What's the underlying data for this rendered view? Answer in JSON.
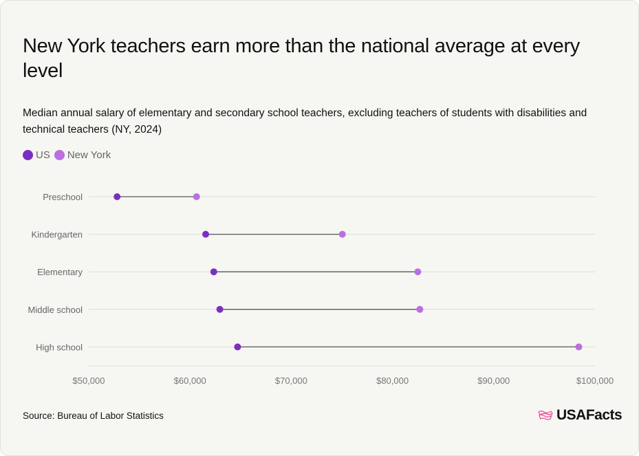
{
  "title": "New York teachers earn more than the national average at every level",
  "subtitle": "Median annual salary of elementary and secondary school teachers, excluding teachers of students with disabilities and technical teachers (NY, 2024)",
  "source": "Source: Bureau of Labor Statistics",
  "logo_text": "USAFacts",
  "chart_data": {
    "type": "dumbbell",
    "categories": [
      "Preschool",
      "Kindergarten",
      "Elementary",
      "Middle school",
      "High school"
    ],
    "series": [
      {
        "name": "US",
        "color": "#7b2fbf",
        "values": [
          52800,
          61550,
          62350,
          62950,
          64700
        ]
      },
      {
        "name": "New York",
        "color": "#bb6fe0",
        "values": [
          60650,
          75050,
          82500,
          82700,
          98400
        ]
      }
    ],
    "xlim": [
      50000,
      100000
    ],
    "xticks": [
      50000,
      60000,
      70000,
      80000,
      90000,
      100000
    ],
    "xtick_labels": [
      "$50,000",
      "$60,000",
      "$70,000",
      "$80,000",
      "$90,000",
      "$100,000"
    ],
    "legend": "top-left",
    "grid": true
  }
}
